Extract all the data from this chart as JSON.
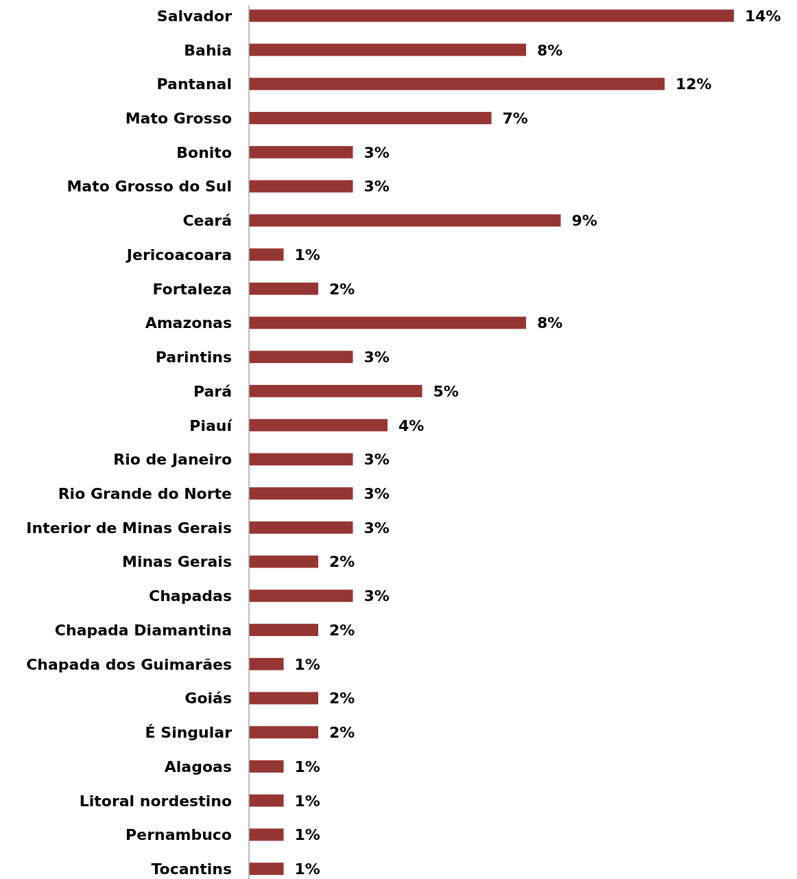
{
  "chart_data": {
    "type": "bar",
    "orientation": "horizontal",
    "categories": [
      "Salvador",
      "Bahia",
      "Pantanal",
      "Mato Grosso",
      "Bonito",
      "Mato Grosso do Sul",
      "Ceará",
      "Jericoacoara",
      "Fortaleza",
      "Amazonas",
      "Parintins",
      "Pará",
      "Piauí",
      "Rio de Janeiro",
      "Rio Grande do Norte",
      "Interior de Minas Gerais",
      "Minas Gerais",
      "Chapadas",
      "Chapada Diamantina",
      "Chapada dos Guimarães",
      "Goiás",
      "É Singular",
      "Alagoas",
      "Litoral nordestino",
      "Pernambuco",
      "Tocantins"
    ],
    "values": [
      14,
      8,
      12,
      7,
      3,
      3,
      9,
      1,
      2,
      8,
      3,
      5,
      4,
      3,
      3,
      3,
      2,
      3,
      2,
      1,
      2,
      2,
      1,
      1,
      1,
      1
    ],
    "value_labels": [
      "14%",
      "8%",
      "12%",
      "7%",
      "3%",
      "3%",
      "9%",
      "1%",
      "2%",
      "8%",
      "3%",
      "5%",
      "4%",
      "3%",
      "3%",
      "3%",
      "2%",
      "3%",
      "2%",
      "1%",
      "2%",
      "2%",
      "1%",
      "1%",
      "1%",
      "1%"
    ],
    "color": "#963634"
  }
}
